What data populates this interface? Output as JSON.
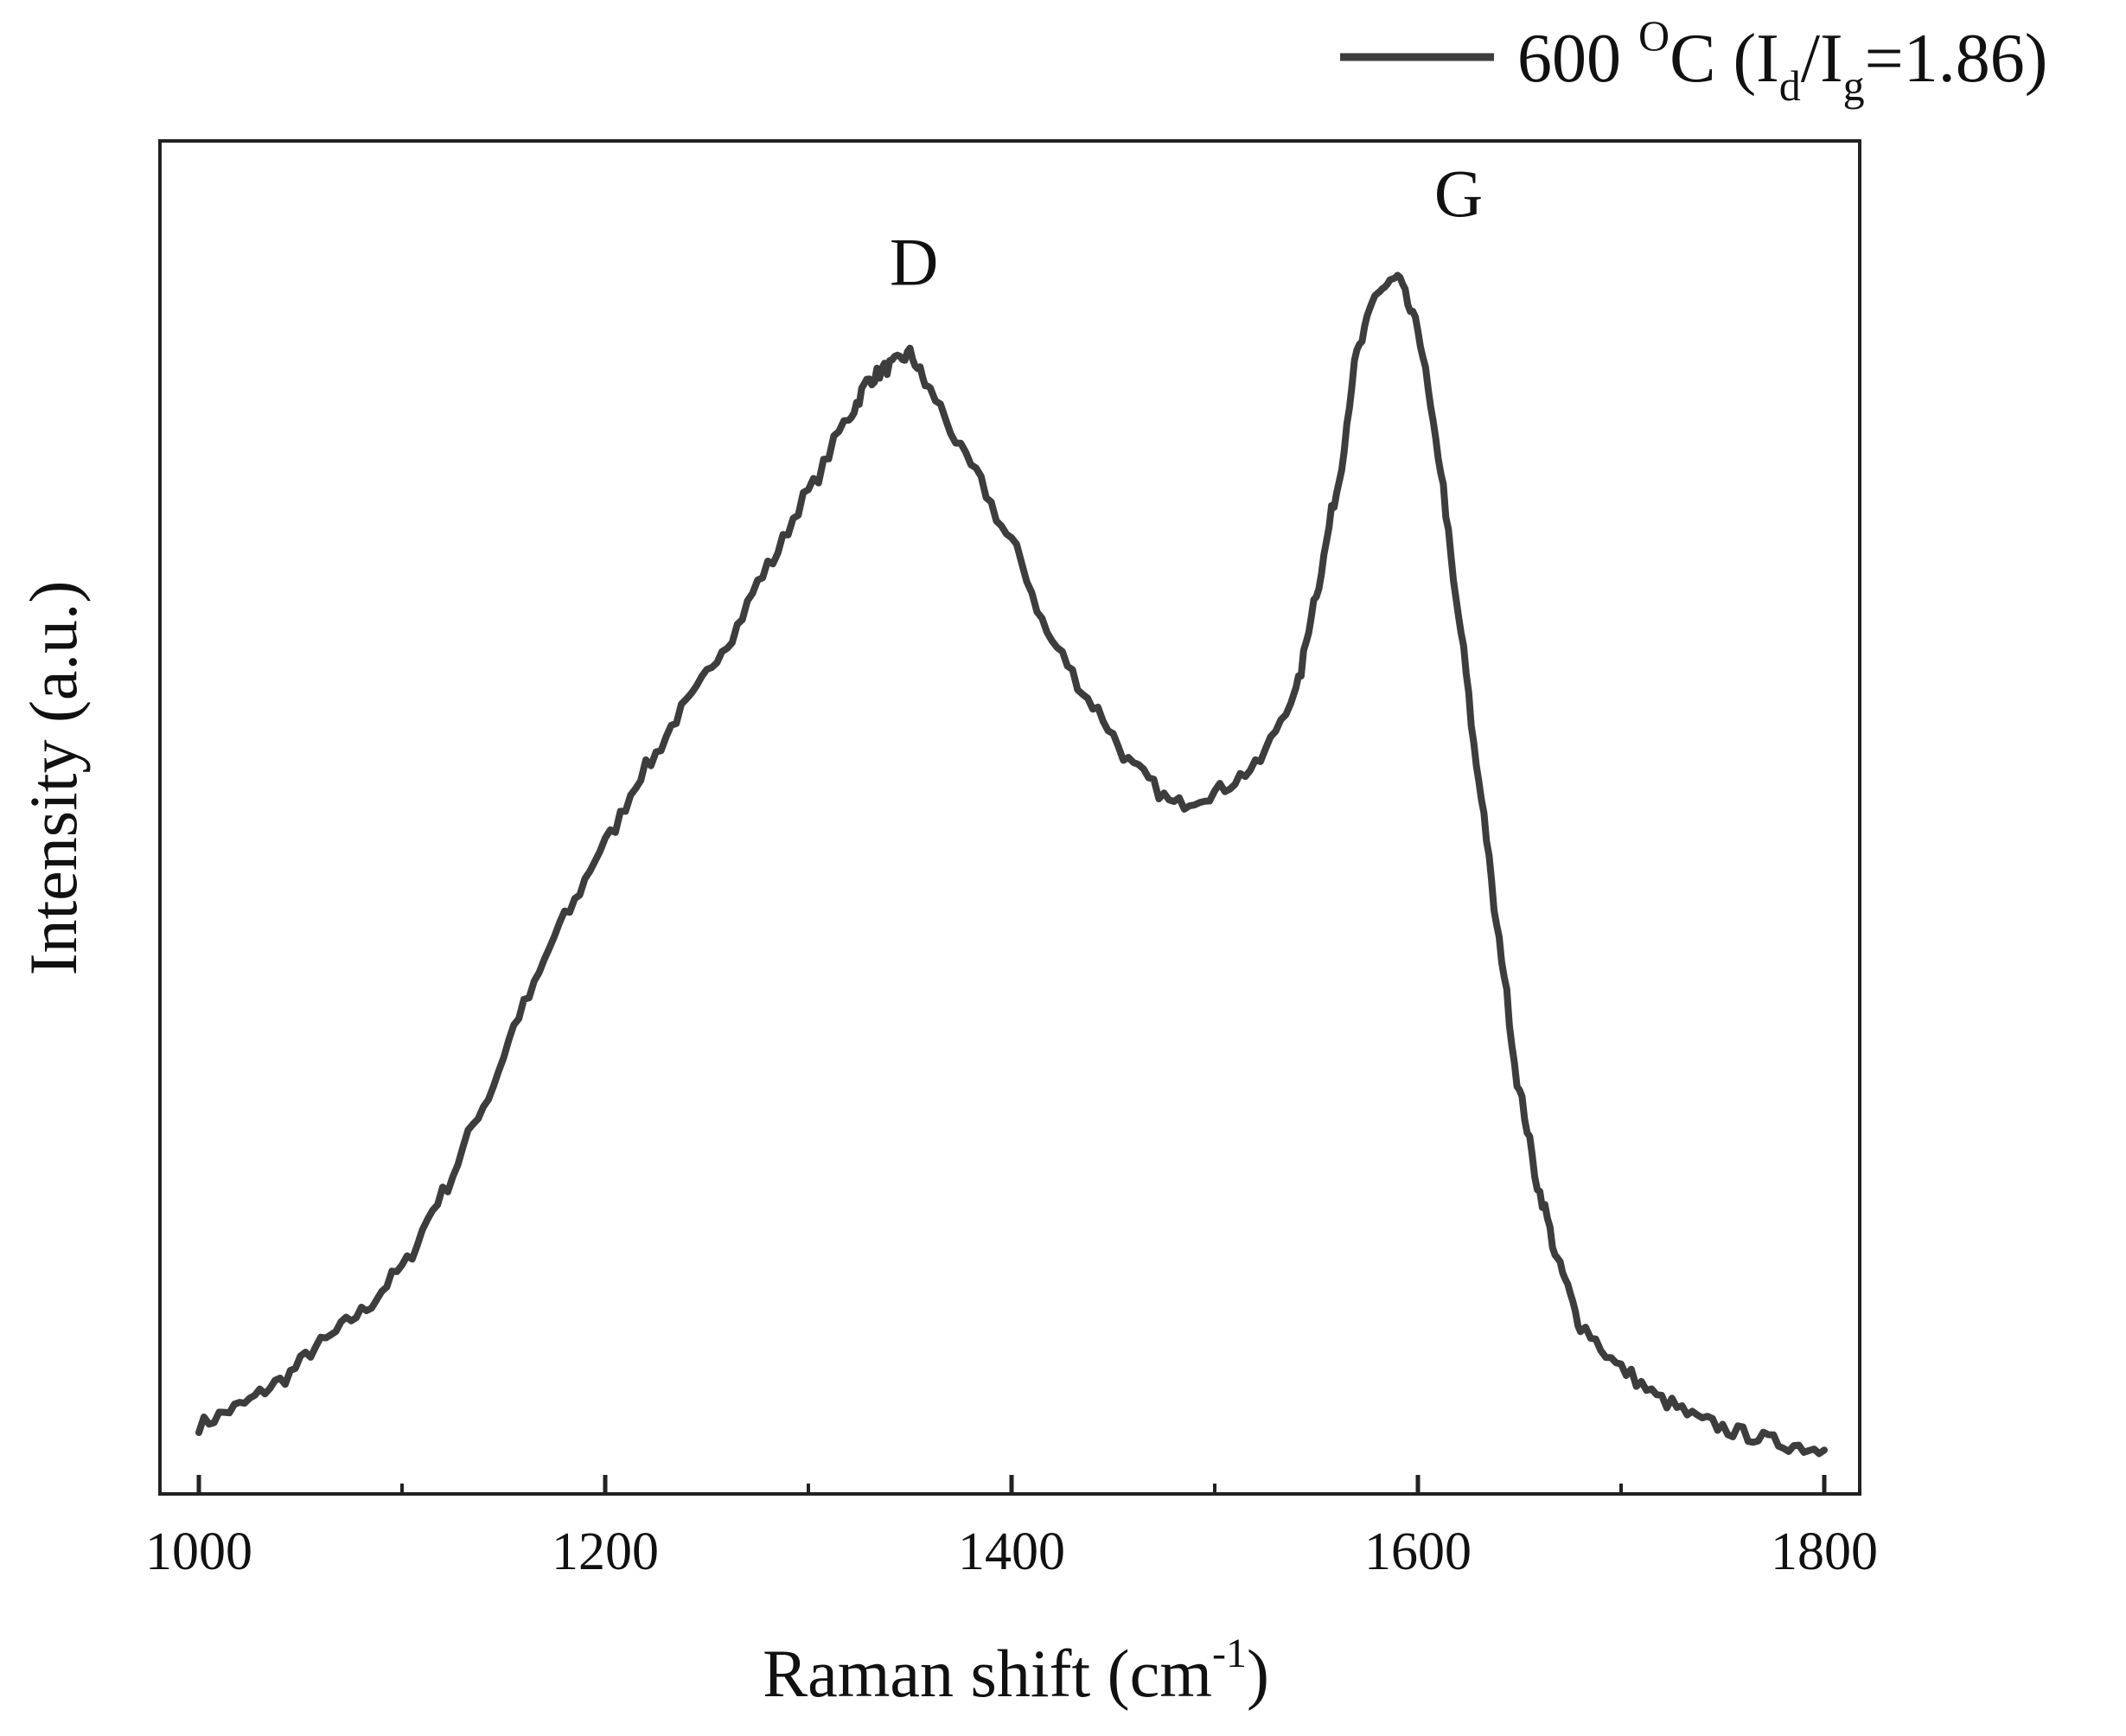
{
  "chart_data": {
    "type": "line",
    "title": "",
    "xlabel": "Raman shift (cm",
    "xlabel_sup": "-1",
    "xlabel_end": ")",
    "ylabel": "Intensity (a.u.)",
    "xlim": [
      1000,
      1800
    ],
    "ylim": [
      0,
      1.08
    ],
    "xticks": [
      1000,
      1200,
      1400,
      1600,
      1800
    ],
    "xtick_labels": [
      "1000",
      "1200",
      "1400",
      "1600",
      "1800"
    ],
    "minor_xticks": [
      1100,
      1300,
      1500,
      1700
    ],
    "grid": false,
    "legend_position": "top-right",
    "series": [
      {
        "name": "600 °C (Id/Ig=1.86)",
        "color": "#3d3d3d",
        "x": [
          1000,
          1020,
          1040,
          1060,
          1080,
          1100,
          1120,
          1140,
          1160,
          1180,
          1200,
          1220,
          1240,
          1260,
          1280,
          1300,
          1320,
          1330,
          1340,
          1350,
          1360,
          1380,
          1400,
          1420,
          1440,
          1460,
          1480,
          1500,
          1520,
          1540,
          1550,
          1560,
          1570,
          1580,
          1590,
          1600,
          1610,
          1620,
          1630,
          1640,
          1650,
          1660,
          1670,
          1680,
          1700,
          1720,
          1740,
          1760,
          1780,
          1800
        ],
        "y": [
          0.055,
          0.07,
          0.09,
          0.12,
          0.145,
          0.18,
          0.24,
          0.31,
          0.39,
          0.46,
          0.52,
          0.58,
          0.63,
          0.68,
          0.74,
          0.8,
          0.86,
          0.89,
          0.9,
          0.91,
          0.88,
          0.82,
          0.76,
          0.68,
          0.63,
          0.58,
          0.55,
          0.56,
          0.58,
          0.64,
          0.72,
          0.8,
          0.91,
          0.96,
          0.97,
          0.93,
          0.83,
          0.7,
          0.57,
          0.44,
          0.32,
          0.24,
          0.18,
          0.135,
          0.1,
          0.075,
          0.058,
          0.048,
          0.04,
          0.035
        ]
      }
    ],
    "annotations": [
      {
        "text": "D",
        "x": 1352,
        "y": 0.965
      },
      {
        "text": "G",
        "x": 1620,
        "y": 1.02
      }
    ]
  },
  "legend": {
    "prefix": "600 ",
    "degree_sup": "O",
    "unit": "C (I",
    "sub_d": "d",
    "slash": "/I",
    "sub_g": "g",
    "ratio": "=1.86)"
  }
}
